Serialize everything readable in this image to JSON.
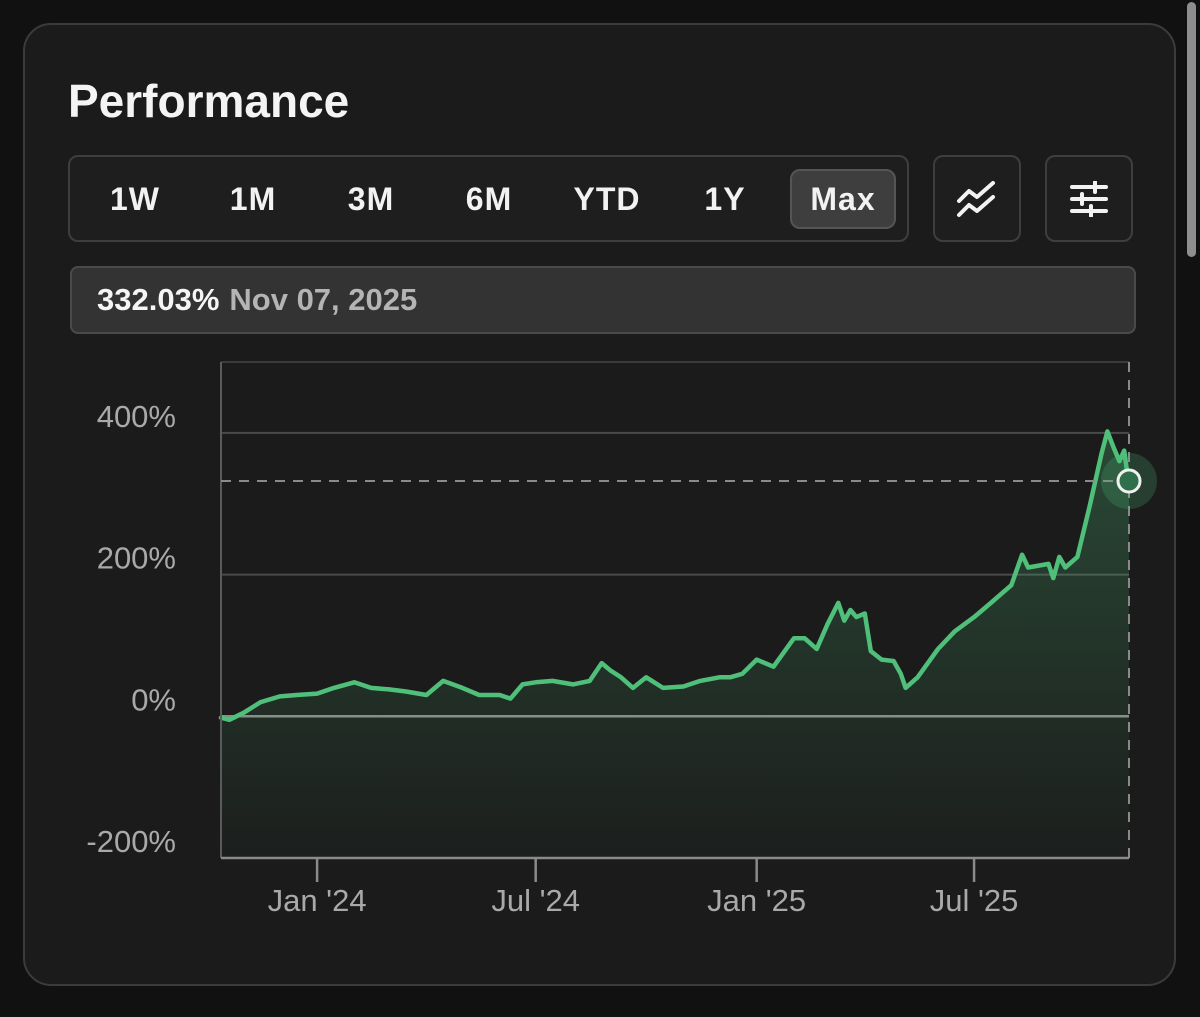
{
  "header": {
    "title": "Performance"
  },
  "ranges": [
    {
      "label": "1W",
      "active": false
    },
    {
      "label": "1M",
      "active": false
    },
    {
      "label": "3M",
      "active": false
    },
    {
      "label": "6M",
      "active": false
    },
    {
      "label": "YTD",
      "active": false
    },
    {
      "label": "1Y",
      "active": false
    },
    {
      "label": "Max",
      "active": true
    }
  ],
  "tools": {
    "compare_icon": "trend-lines-icon",
    "settings_icon": "sliders-icon"
  },
  "readout": {
    "value": "332.03%",
    "date": "Nov 07, 2025"
  },
  "colors": {
    "line": "#4fbf7a",
    "background": "#1b1b1b",
    "grid": "#555555"
  },
  "chart_data": {
    "type": "area",
    "ylim": [
      -200,
      500
    ],
    "yticks": [
      {
        "value": 400,
        "label": "400%"
      },
      {
        "value": 200,
        "label": "200%"
      },
      {
        "value": 0,
        "label": "0%"
      },
      {
        "value": -200,
        "label": "-200%"
      }
    ],
    "xlim": [
      "2023-10-13",
      "2025-11-07"
    ],
    "xticks": [
      {
        "date": "2024-01-01",
        "label": "Jan '24"
      },
      {
        "date": "2024-07-01",
        "label": "Jul '24"
      },
      {
        "date": "2025-01-01",
        "label": "Jan '25"
      },
      {
        "date": "2025-07-01",
        "label": "Jul '25"
      }
    ],
    "series": [
      {
        "points": [
          [
            "2023-10-13",
            -2
          ],
          [
            "2023-10-20",
            -5
          ],
          [
            "2023-11-01",
            5
          ],
          [
            "2023-11-15",
            20
          ],
          [
            "2023-12-01",
            28
          ],
          [
            "2023-12-15",
            30
          ],
          [
            "2024-01-01",
            32
          ],
          [
            "2024-01-15",
            40
          ],
          [
            "2024-02-01",
            48
          ],
          [
            "2024-02-15",
            40
          ],
          [
            "2024-03-01",
            38
          ],
          [
            "2024-03-15",
            35
          ],
          [
            "2024-04-01",
            30
          ],
          [
            "2024-04-15",
            50
          ],
          [
            "2024-05-01",
            40
          ],
          [
            "2024-05-15",
            30
          ],
          [
            "2024-06-01",
            30
          ],
          [
            "2024-06-10",
            25
          ],
          [
            "2024-06-20",
            45
          ],
          [
            "2024-07-01",
            48
          ],
          [
            "2024-07-15",
            50
          ],
          [
            "2024-08-01",
            45
          ],
          [
            "2024-08-15",
            50
          ],
          [
            "2024-08-25",
            75
          ],
          [
            "2024-09-01",
            65
          ],
          [
            "2024-09-10",
            55
          ],
          [
            "2024-09-20",
            40
          ],
          [
            "2024-10-01",
            55
          ],
          [
            "2024-10-15",
            40
          ],
          [
            "2024-11-01",
            42
          ],
          [
            "2024-11-15",
            50
          ],
          [
            "2024-12-01",
            55
          ],
          [
            "2024-12-10",
            55
          ],
          [
            "2024-12-20",
            60
          ],
          [
            "2025-01-01",
            80
          ],
          [
            "2025-01-15",
            70
          ],
          [
            "2025-02-01",
            110
          ],
          [
            "2025-02-10",
            110
          ],
          [
            "2025-02-20",
            95
          ],
          [
            "2025-03-01",
            130
          ],
          [
            "2025-03-10",
            160
          ],
          [
            "2025-03-15",
            135
          ],
          [
            "2025-03-20",
            150
          ],
          [
            "2025-03-25",
            140
          ],
          [
            "2025-04-01",
            145
          ],
          [
            "2025-04-06",
            92
          ],
          [
            "2025-04-15",
            80
          ],
          [
            "2025-04-25",
            78
          ],
          [
            "2025-05-01",
            60
          ],
          [
            "2025-05-05",
            40
          ],
          [
            "2025-05-15",
            55
          ],
          [
            "2025-06-01",
            95
          ],
          [
            "2025-06-15",
            120
          ],
          [
            "2025-07-01",
            140
          ],
          [
            "2025-07-15",
            160
          ],
          [
            "2025-08-01",
            185
          ],
          [
            "2025-08-10",
            228
          ],
          [
            "2025-08-15",
            210
          ],
          [
            "2025-09-01",
            215
          ],
          [
            "2025-09-05",
            195
          ],
          [
            "2025-09-10",
            225
          ],
          [
            "2025-09-15",
            210
          ],
          [
            "2025-09-25",
            225
          ],
          [
            "2025-10-05",
            295
          ],
          [
            "2025-10-15",
            370
          ],
          [
            "2025-10-20",
            402
          ],
          [
            "2025-10-25",
            380
          ],
          [
            "2025-10-30",
            360
          ],
          [
            "2025-11-03",
            375
          ],
          [
            "2025-11-05",
            350
          ],
          [
            "2025-11-07",
            332
          ]
        ]
      }
    ],
    "marker": {
      "date": "2025-11-07",
      "value": 332.03
    }
  }
}
